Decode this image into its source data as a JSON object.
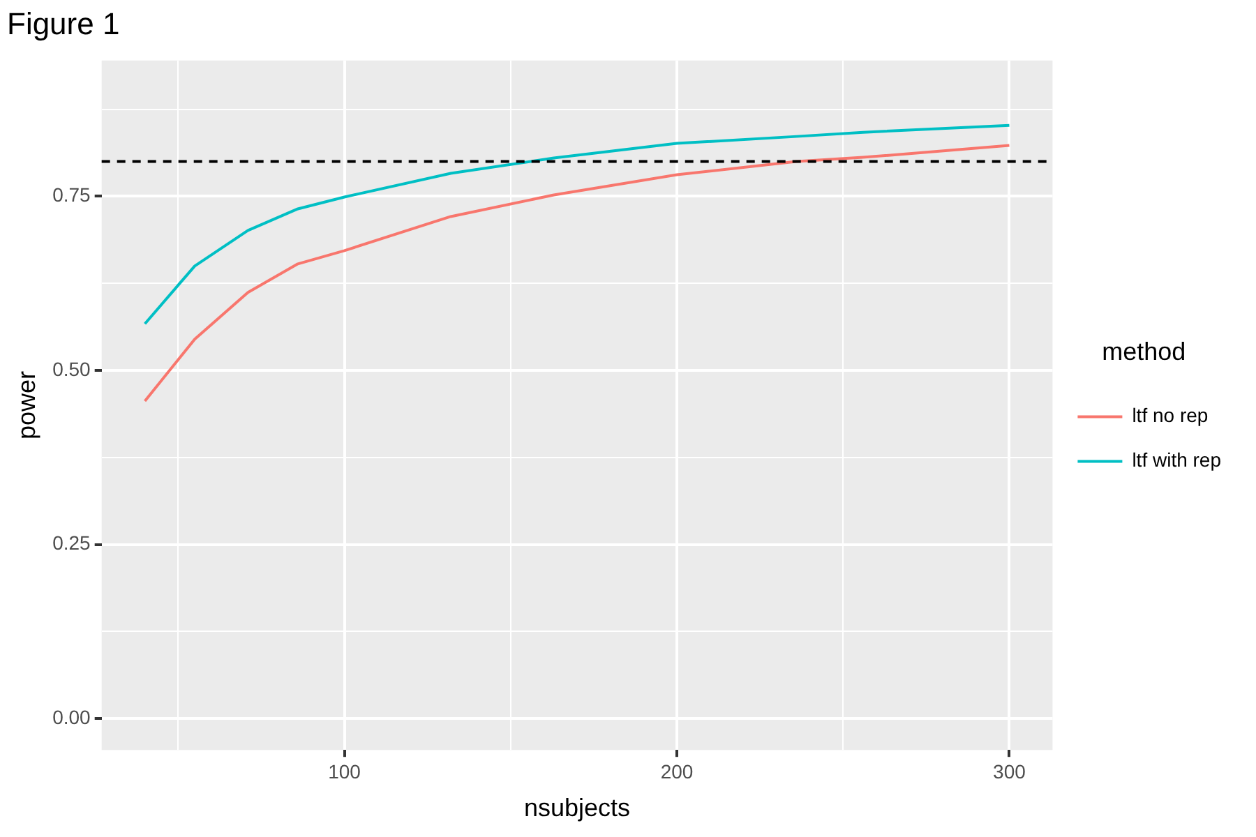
{
  "chart_data": {
    "type": "line",
    "title": "Figure 1",
    "xlabel": "nsubjects",
    "ylabel": "power",
    "legend_title": "method",
    "x": [
      40,
      55,
      71,
      86,
      100,
      132,
      163,
      200,
      236,
      256,
      300
    ],
    "series": [
      {
        "name": "ltf no rep",
        "color": "#f8766d",
        "values": [
          0.456,
          0.545,
          0.612,
          0.653,
          0.672,
          0.721,
          0.752,
          0.781,
          0.8,
          0.806,
          0.823
        ]
      },
      {
        "name": "ltf with rep",
        "color": "#00bfc4",
        "values": [
          0.567,
          0.65,
          0.701,
          0.732,
          0.749,
          0.783,
          0.805,
          0.826,
          0.836,
          0.842,
          0.852
        ]
      }
    ],
    "xlim": [
      27,
      313
    ],
    "xticks": [
      {
        "value": 50,
        "label": null
      },
      100,
      {
        "value": 150,
        "label": null
      },
      200,
      {
        "value": 250,
        "label": null
      },
      300
    ],
    "ylim": [
      -0.045,
      0.945
    ],
    "yticks": [
      {
        "value": 0,
        "label": "0.00"
      },
      {
        "value": 0.125,
        "label": null
      },
      0.25,
      {
        "value": 0.375,
        "label": null
      },
      {
        "value": 0.5,
        "label": "0.50"
      },
      {
        "value": 0.625,
        "label": null
      },
      0.75,
      {
        "value": 0.875,
        "label": null
      }
    ],
    "ref_lines": [
      {
        "axis": "y",
        "value": 0.8,
        "color": "#000000",
        "line_style": "dashed"
      }
    ],
    "grid": true,
    "legend": "right",
    "marker": "none",
    "line_style": "solid"
  }
}
